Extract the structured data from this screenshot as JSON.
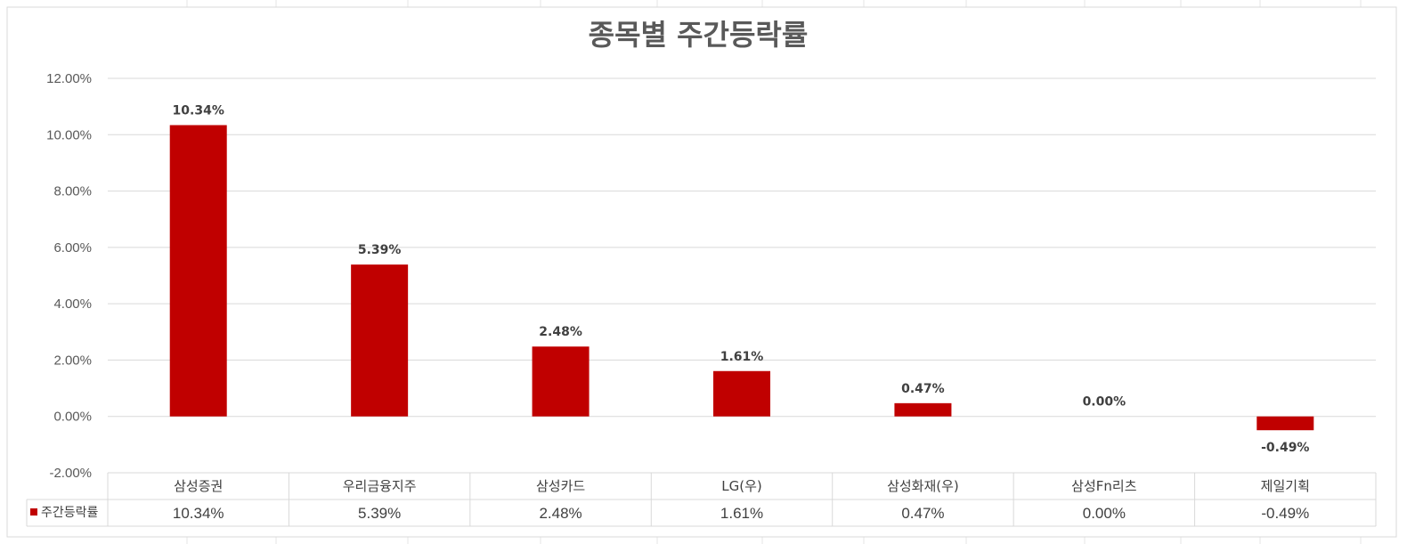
{
  "chart_data": {
    "type": "bar",
    "title": "종목별 주간등락률",
    "categories": [
      "삼성증권",
      "우리금융지주",
      "삼성카드",
      "LG(우)",
      "삼성화재(우)",
      "삼성Fn리츠",
      "제일기획"
    ],
    "series": [
      {
        "name": "주간등락률",
        "values": [
          10.34,
          5.39,
          2.48,
          1.61,
          0.47,
          0.0,
          -0.49
        ],
        "labels": [
          "10.34%",
          "5.39%",
          "2.48%",
          "1.61%",
          "0.47%",
          "0.00%",
          "-0.49%"
        ],
        "color": "#C00000"
      }
    ],
    "ylim": [
      -2,
      12
    ],
    "y_ticks": [
      "12.00%",
      "10.00%",
      "8.00%",
      "6.00%",
      "4.00%",
      "2.00%",
      "0.00%",
      "-2.00%"
    ],
    "y_tick_values": [
      12,
      10,
      8,
      6,
      4,
      2,
      0,
      -2
    ],
    "xlabel": "",
    "ylabel": "",
    "grid": true,
    "data_table": true,
    "legend": "data-table-left"
  },
  "colors": {
    "bar": "#C00000",
    "grid": "#D9D9D9",
    "text": "#595959"
  }
}
